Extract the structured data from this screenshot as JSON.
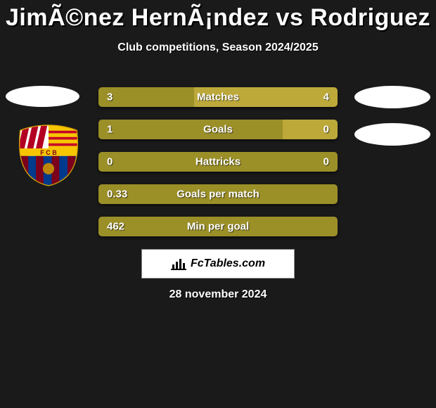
{
  "title": "JimÃ©nez HernÃ¡ndez vs Rodriguez",
  "subtitle": "Club competitions, Season 2024/2025",
  "date": "28 november 2024",
  "brand_text": "FcTables.com",
  "colors": {
    "bar_base": "#9b8f28",
    "bar_alt": "#bca93a",
    "bg": "#1a1a1a"
  },
  "bars": [
    {
      "label": "Matches",
      "left": "3",
      "right": "4",
      "left_pct": 40,
      "right_pct": 60
    },
    {
      "label": "Goals",
      "left": "1",
      "right": "0",
      "left_pct": 77,
      "right_pct": 23
    },
    {
      "label": "Hattricks",
      "left": "0",
      "right": "0",
      "left_pct": 100,
      "right_pct": 0
    },
    {
      "label": "Goals per match",
      "left": "0.33",
      "right": "",
      "left_pct": 100,
      "right_pct": 0
    },
    {
      "label": "Min per goal",
      "left": "462",
      "right": "",
      "left_pct": 100,
      "right_pct": 0
    }
  ]
}
